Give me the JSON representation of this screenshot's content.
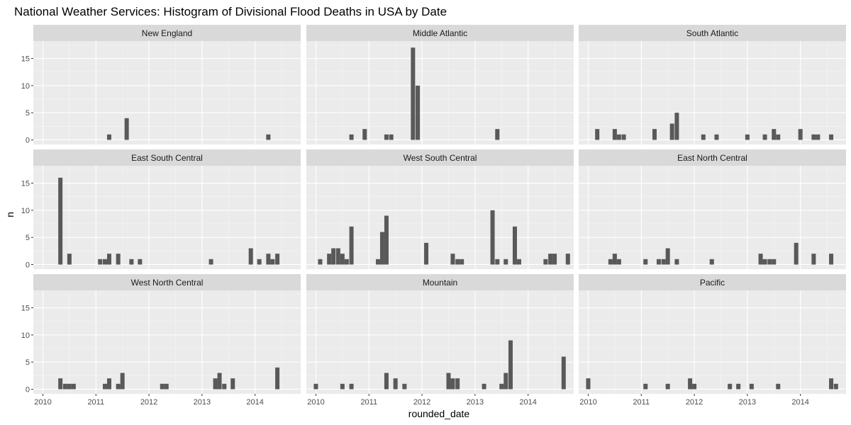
{
  "chart_data": {
    "type": "bar",
    "title": "National Weather Services: Histogram of Divisional Flood Deaths in USA by Date",
    "xlabel": "rounded_date",
    "ylabel": "n",
    "x_ticks": [
      "2010",
      "2011",
      "2012",
      "2013",
      "2014"
    ],
    "y_ticks": [
      "0",
      "5",
      "10",
      "15"
    ],
    "xlim": [
      2009.82,
      2014.86
    ],
    "ylim": [
      -0.85,
      18.2
    ],
    "bar_color": "#595959",
    "panel_background": "#ebebeb",
    "strip_background": "#d9d9d9",
    "grid": true,
    "facets": [
      {
        "name": "New England",
        "bars": [
          {
            "x": 2011.25,
            "n": 1
          },
          {
            "x": 2011.58,
            "n": 4
          },
          {
            "x": 2014.25,
            "n": 1
          }
        ]
      },
      {
        "name": "Middle Atlantic",
        "bars": [
          {
            "x": 2010.67,
            "n": 1
          },
          {
            "x": 2010.92,
            "n": 2
          },
          {
            "x": 2011.33,
            "n": 1
          },
          {
            "x": 2011.42,
            "n": 1
          },
          {
            "x": 2011.83,
            "n": 17
          },
          {
            "x": 2011.92,
            "n": 10
          },
          {
            "x": 2013.42,
            "n": 2
          }
        ]
      },
      {
        "name": "South Atlantic",
        "bars": [
          {
            "x": 2010.17,
            "n": 2
          },
          {
            "x": 2010.5,
            "n": 2
          },
          {
            "x": 2010.58,
            "n": 1
          },
          {
            "x": 2010.67,
            "n": 1
          },
          {
            "x": 2011.25,
            "n": 2
          },
          {
            "x": 2011.58,
            "n": 3
          },
          {
            "x": 2011.67,
            "n": 5
          },
          {
            "x": 2012.17,
            "n": 1
          },
          {
            "x": 2012.42,
            "n": 1
          },
          {
            "x": 2013.0,
            "n": 1
          },
          {
            "x": 2013.33,
            "n": 1
          },
          {
            "x": 2013.5,
            "n": 2
          },
          {
            "x": 2013.58,
            "n": 1
          },
          {
            "x": 2014.0,
            "n": 2
          },
          {
            "x": 2014.25,
            "n": 1
          },
          {
            "x": 2014.33,
            "n": 1
          },
          {
            "x": 2014.58,
            "n": 1
          }
        ]
      },
      {
        "name": "East South Central",
        "bars": [
          {
            "x": 2010.33,
            "n": 16
          },
          {
            "x": 2010.5,
            "n": 2
          },
          {
            "x": 2011.08,
            "n": 1
          },
          {
            "x": 2011.17,
            "n": 1
          },
          {
            "x": 2011.25,
            "n": 2
          },
          {
            "x": 2011.42,
            "n": 2
          },
          {
            "x": 2011.67,
            "n": 1
          },
          {
            "x": 2011.83,
            "n": 1
          },
          {
            "x": 2013.17,
            "n": 1
          },
          {
            "x": 2013.92,
            "n": 3
          },
          {
            "x": 2014.08,
            "n": 1
          },
          {
            "x": 2014.25,
            "n": 2
          },
          {
            "x": 2014.33,
            "n": 1
          },
          {
            "x": 2014.42,
            "n": 2
          }
        ]
      },
      {
        "name": "West South Central",
        "bars": [
          {
            "x": 2010.08,
            "n": 1
          },
          {
            "x": 2010.25,
            "n": 2
          },
          {
            "x": 2010.33,
            "n": 3
          },
          {
            "x": 2010.42,
            "n": 3
          },
          {
            "x": 2010.5,
            "n": 2
          },
          {
            "x": 2010.58,
            "n": 1
          },
          {
            "x": 2010.67,
            "n": 7
          },
          {
            "x": 2011.17,
            "n": 1
          },
          {
            "x": 2011.25,
            "n": 6
          },
          {
            "x": 2011.33,
            "n": 9
          },
          {
            "x": 2012.08,
            "n": 4
          },
          {
            "x": 2012.58,
            "n": 2
          },
          {
            "x": 2012.67,
            "n": 1
          },
          {
            "x": 2012.75,
            "n": 1
          },
          {
            "x": 2013.33,
            "n": 10
          },
          {
            "x": 2013.42,
            "n": 1
          },
          {
            "x": 2013.58,
            "n": 1
          },
          {
            "x": 2013.75,
            "n": 7
          },
          {
            "x": 2013.83,
            "n": 1
          },
          {
            "x": 2014.33,
            "n": 1
          },
          {
            "x": 2014.42,
            "n": 2
          },
          {
            "x": 2014.5,
            "n": 2
          },
          {
            "x": 2014.75,
            "n": 2
          }
        ]
      },
      {
        "name": "East North Central",
        "bars": [
          {
            "x": 2010.42,
            "n": 1
          },
          {
            "x": 2010.5,
            "n": 2
          },
          {
            "x": 2010.58,
            "n": 1
          },
          {
            "x": 2011.08,
            "n": 1
          },
          {
            "x": 2011.33,
            "n": 1
          },
          {
            "x": 2011.42,
            "n": 1
          },
          {
            "x": 2011.5,
            "n": 3
          },
          {
            "x": 2011.67,
            "n": 1
          },
          {
            "x": 2012.33,
            "n": 1
          },
          {
            "x": 2013.25,
            "n": 2
          },
          {
            "x": 2013.33,
            "n": 1
          },
          {
            "x": 2013.42,
            "n": 1
          },
          {
            "x": 2013.5,
            "n": 1
          },
          {
            "x": 2013.92,
            "n": 4
          },
          {
            "x": 2014.25,
            "n": 2
          },
          {
            "x": 2014.58,
            "n": 2
          }
        ]
      },
      {
        "name": "West North Central",
        "bars": [
          {
            "x": 2010.33,
            "n": 2
          },
          {
            "x": 2010.42,
            "n": 1
          },
          {
            "x": 2010.5,
            "n": 1
          },
          {
            "x": 2010.58,
            "n": 1
          },
          {
            "x": 2011.17,
            "n": 1
          },
          {
            "x": 2011.25,
            "n": 2
          },
          {
            "x": 2011.42,
            "n": 1
          },
          {
            "x": 2011.5,
            "n": 3
          },
          {
            "x": 2012.25,
            "n": 1
          },
          {
            "x": 2012.33,
            "n": 1
          },
          {
            "x": 2013.25,
            "n": 2
          },
          {
            "x": 2013.33,
            "n": 3
          },
          {
            "x": 2013.42,
            "n": 1
          },
          {
            "x": 2013.58,
            "n": 2
          },
          {
            "x": 2014.42,
            "n": 4
          }
        ]
      },
      {
        "name": "Mountain",
        "bars": [
          {
            "x": 2010.0,
            "n": 1
          },
          {
            "x": 2010.5,
            "n": 1
          },
          {
            "x": 2010.67,
            "n": 1
          },
          {
            "x": 2011.33,
            "n": 3
          },
          {
            "x": 2011.5,
            "n": 2
          },
          {
            "x": 2011.67,
            "n": 1
          },
          {
            "x": 2012.5,
            "n": 3
          },
          {
            "x": 2012.58,
            "n": 2
          },
          {
            "x": 2012.67,
            "n": 2
          },
          {
            "x": 2013.17,
            "n": 1
          },
          {
            "x": 2013.5,
            "n": 1
          },
          {
            "x": 2013.58,
            "n": 3
          },
          {
            "x": 2013.67,
            "n": 9
          },
          {
            "x": 2014.67,
            "n": 6
          }
        ]
      },
      {
        "name": "Pacific",
        "bars": [
          {
            "x": 2010.0,
            "n": 2
          },
          {
            "x": 2011.08,
            "n": 1
          },
          {
            "x": 2011.5,
            "n": 1
          },
          {
            "x": 2011.92,
            "n": 2
          },
          {
            "x": 2012.0,
            "n": 1
          },
          {
            "x": 2012.67,
            "n": 1
          },
          {
            "x": 2012.83,
            "n": 1
          },
          {
            "x": 2013.08,
            "n": 1
          },
          {
            "x": 2013.58,
            "n": 1
          },
          {
            "x": 2014.58,
            "n": 2
          },
          {
            "x": 2014.67,
            "n": 1
          }
        ]
      }
    ]
  }
}
